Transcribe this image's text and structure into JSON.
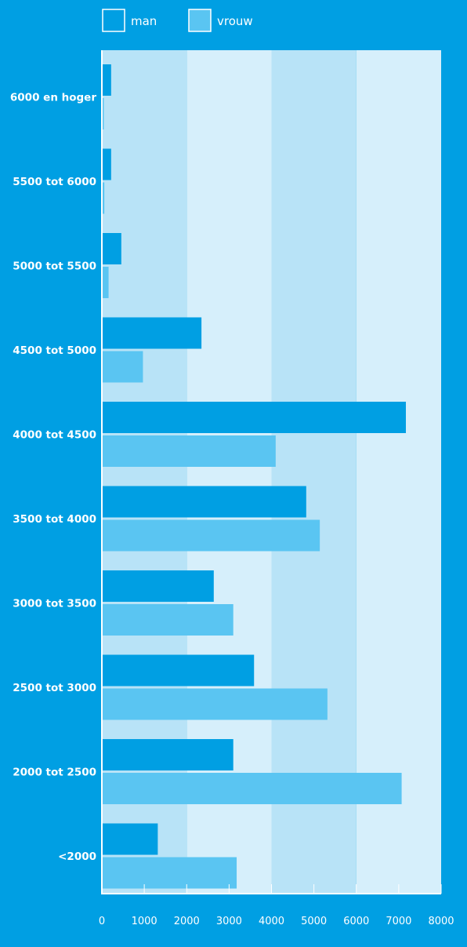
{
  "chart_data": {
    "type": "bar",
    "orientation": "horizontal",
    "categories": [
      "6000 en hoger",
      "5500 tot 6000",
      "5000 tot 5500",
      "4500 tot 5000",
      "4000 tot 4500",
      "3500 tot 4000",
      "3000 tot 3500",
      "2500 tot 3000",
      "2000 tot 2500",
      "<2000"
    ],
    "series": [
      {
        "name": "man",
        "color": "#009fe3",
        "values": [
          200,
          200,
          440,
          2330,
          7150,
          4800,
          2620,
          3570,
          3080,
          1300
        ]
      },
      {
        "name": "vrouw",
        "color": "#5ac5f2",
        "values": [
          20,
          40,
          140,
          950,
          4080,
          5120,
          3080,
          5300,
          7050,
          3160
        ]
      }
    ],
    "x_ticks": [
      "0",
      "1000",
      "2000",
      "3000",
      "4000",
      "5000",
      "6000",
      "7000",
      "8000"
    ],
    "xlim": [
      0,
      8000
    ],
    "legend_position": "top",
    "grid": false,
    "background_bands": [
      "#b8e3f7",
      "#d6effb"
    ]
  }
}
